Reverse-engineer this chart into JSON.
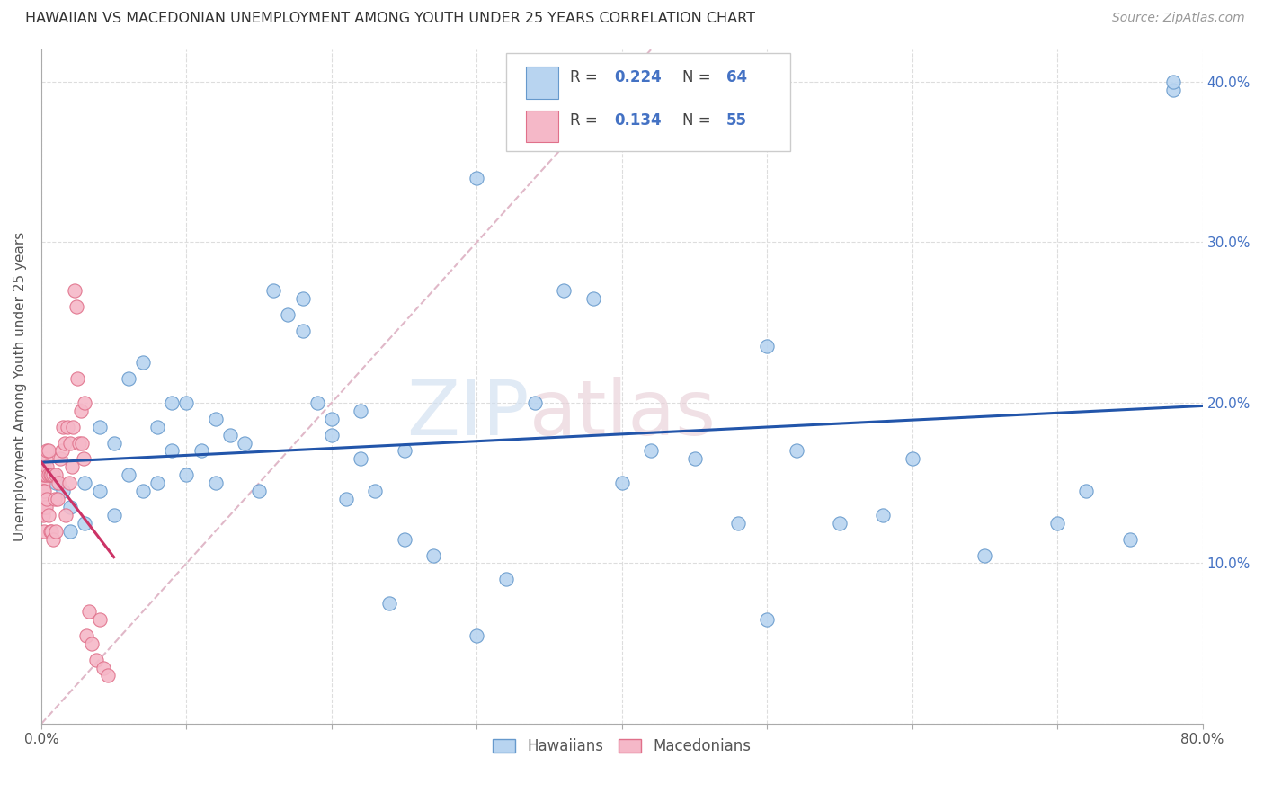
{
  "title": "HAWAIIAN VS MACEDONIAN UNEMPLOYMENT AMONG YOUTH UNDER 25 YEARS CORRELATION CHART",
  "source": "Source: ZipAtlas.com",
  "ylabel": "Unemployment Among Youth under 25 years",
  "xlim": [
    0.0,
    0.8
  ],
  "ylim": [
    0.0,
    0.42
  ],
  "hawaii_color": "#b8d4f0",
  "hawaii_edge_color": "#6699cc",
  "macedon_color": "#f5b8c8",
  "macedon_edge_color": "#e0708a",
  "trendline_hawaii_color": "#2255aa",
  "trendline_macedon_color": "#cc3366",
  "diagonal_color": "#e0b8c8",
  "watermark_zip": "ZIP",
  "watermark_atlas": "atlas",
  "hawaiians_x": [
    0.005,
    0.01,
    0.015,
    0.02,
    0.02,
    0.03,
    0.03,
    0.04,
    0.04,
    0.05,
    0.05,
    0.06,
    0.06,
    0.07,
    0.07,
    0.08,
    0.08,
    0.09,
    0.09,
    0.1,
    0.1,
    0.11,
    0.12,
    0.12,
    0.13,
    0.14,
    0.15,
    0.16,
    0.17,
    0.18,
    0.19,
    0.2,
    0.21,
    0.22,
    0.23,
    0.24,
    0.25,
    0.27,
    0.3,
    0.32,
    0.34,
    0.36,
    0.38,
    0.4,
    0.42,
    0.45,
    0.48,
    0.5,
    0.52,
    0.55,
    0.58,
    0.6,
    0.65,
    0.7,
    0.72,
    0.75,
    0.78,
    0.5,
    0.25,
    0.18,
    0.2,
    0.22,
    0.3,
    0.78
  ],
  "hawaiians_y": [
    0.155,
    0.15,
    0.145,
    0.135,
    0.12,
    0.15,
    0.125,
    0.185,
    0.145,
    0.175,
    0.13,
    0.215,
    0.155,
    0.225,
    0.145,
    0.185,
    0.15,
    0.2,
    0.17,
    0.2,
    0.155,
    0.17,
    0.19,
    0.15,
    0.18,
    0.175,
    0.145,
    0.27,
    0.255,
    0.245,
    0.2,
    0.19,
    0.14,
    0.195,
    0.145,
    0.075,
    0.115,
    0.105,
    0.055,
    0.09,
    0.2,
    0.27,
    0.265,
    0.15,
    0.17,
    0.165,
    0.125,
    0.235,
    0.17,
    0.125,
    0.13,
    0.165,
    0.105,
    0.125,
    0.145,
    0.115,
    0.395,
    0.065,
    0.17,
    0.265,
    0.18,
    0.165,
    0.34,
    0.4
  ],
  "macedonians_x": [
    0.001,
    0.001,
    0.001,
    0.001,
    0.001,
    0.002,
    0.002,
    0.002,
    0.002,
    0.002,
    0.003,
    0.003,
    0.003,
    0.004,
    0.004,
    0.004,
    0.005,
    0.005,
    0.005,
    0.006,
    0.006,
    0.007,
    0.007,
    0.008,
    0.008,
    0.009,
    0.01,
    0.01,
    0.011,
    0.012,
    0.013,
    0.014,
    0.015,
    0.016,
    0.017,
    0.018,
    0.019,
    0.02,
    0.021,
    0.022,
    0.023,
    0.024,
    0.025,
    0.026,
    0.027,
    0.028,
    0.029,
    0.03,
    0.031,
    0.033,
    0.035,
    0.038,
    0.04,
    0.043,
    0.046
  ],
  "macedonians_y": [
    0.155,
    0.15,
    0.145,
    0.14,
    0.13,
    0.16,
    0.155,
    0.145,
    0.135,
    0.12,
    0.165,
    0.155,
    0.135,
    0.17,
    0.16,
    0.14,
    0.17,
    0.155,
    0.13,
    0.155,
    0.12,
    0.155,
    0.12,
    0.155,
    0.115,
    0.14,
    0.155,
    0.12,
    0.14,
    0.15,
    0.165,
    0.17,
    0.185,
    0.175,
    0.13,
    0.185,
    0.15,
    0.175,
    0.16,
    0.185,
    0.27,
    0.26,
    0.215,
    0.175,
    0.195,
    0.175,
    0.165,
    0.2,
    0.055,
    0.07,
    0.05,
    0.04,
    0.065,
    0.035,
    0.03
  ]
}
